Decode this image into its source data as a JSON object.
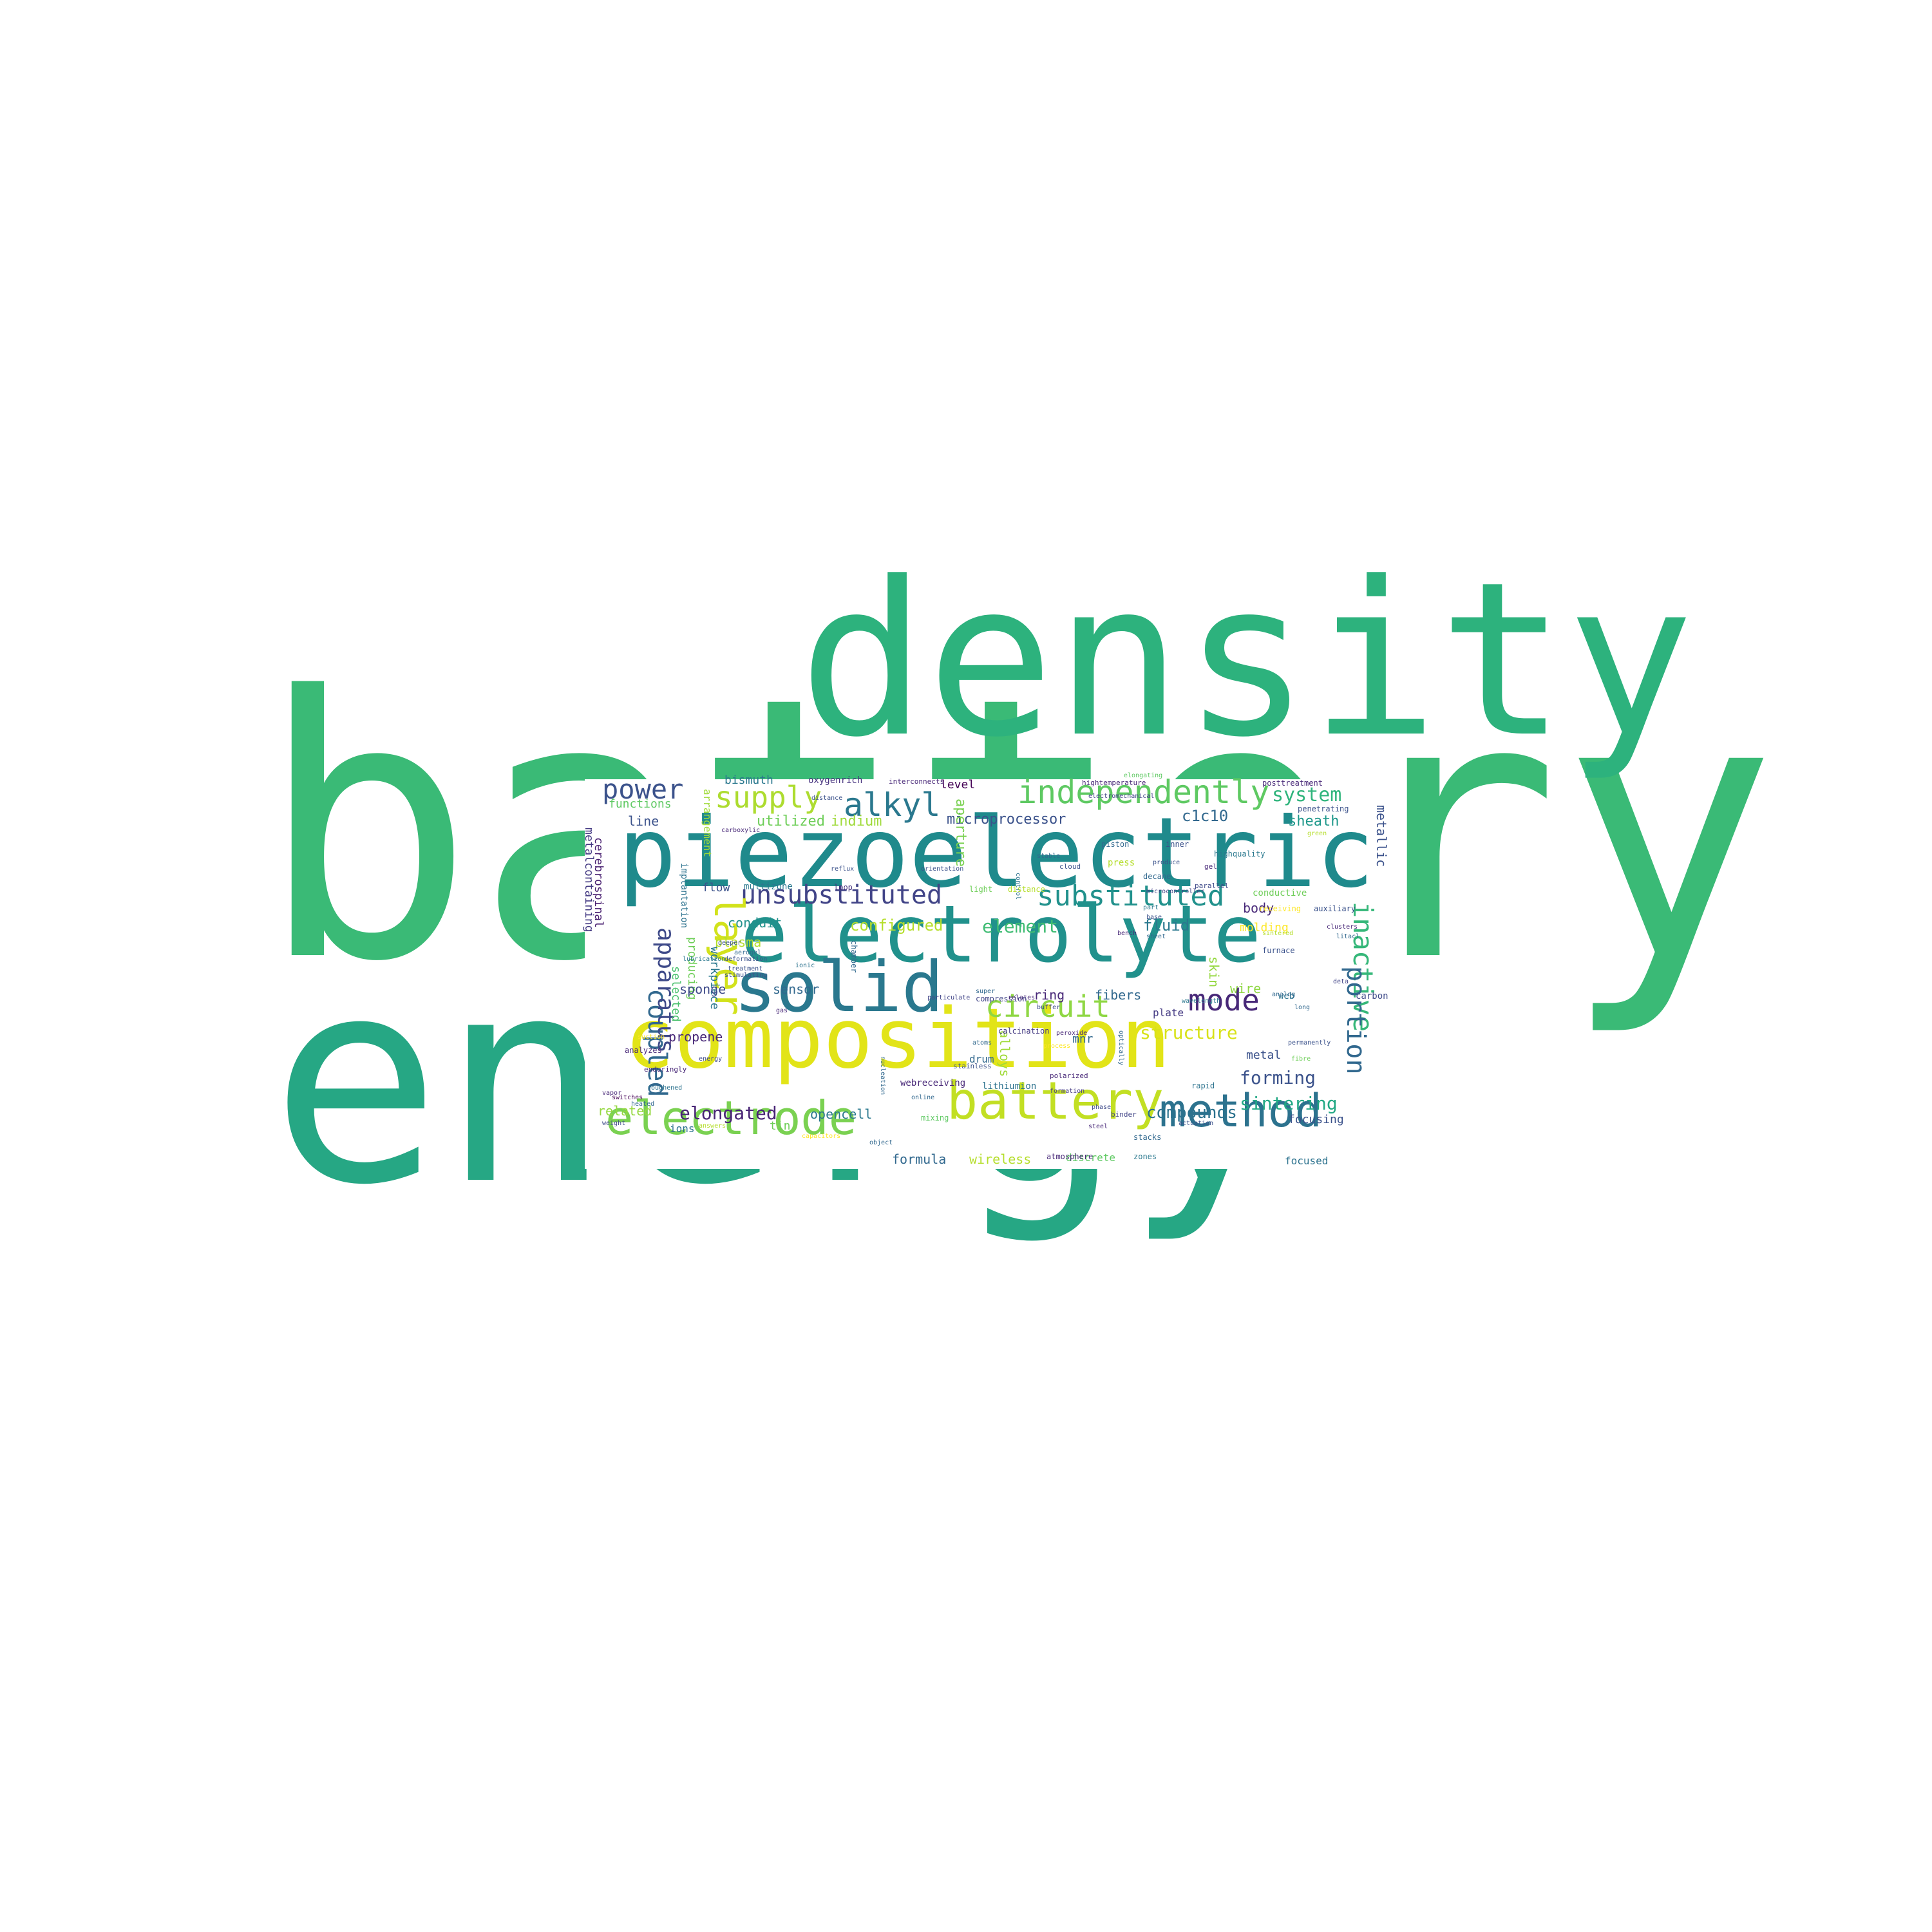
{
  "background_color": "#ffffff",
  "words": [
    {
      "text": "battery",
      "color": "#3aba76"
    },
    {
      "text": "energy",
      "color": "#26a784"
    },
    {
      "text": "density",
      "color": "#2db27d"
    },
    {
      "text": "piezoelectric",
      "color": "#1f8a8c"
    },
    {
      "text": "electrolyte",
      "color": "#21918c"
    },
    {
      "text": "composition",
      "color": "#e2e418"
    },
    {
      "text": "solid",
      "color": "#2a788e"
    },
    {
      "text": "battery",
      "color": "#c2df23"
    },
    {
      "text": "electrode",
      "color": "#7ad151"
    },
    {
      "text": "method",
      "color": "#2c728e"
    },
    {
      "text": "independently",
      "color": "#5ec962"
    },
    {
      "text": "alkyl",
      "color": "#2a788e"
    },
    {
      "text": "supply",
      "color": "#addc30"
    },
    {
      "text": "power",
      "color": "#3b528b"
    },
    {
      "text": "unsubstituted",
      "color": "#414487"
    },
    {
      "text": "substituted",
      "color": "#21918c"
    },
    {
      "text": "layer",
      "color": "#d2e21b"
    },
    {
      "text": "circuit",
      "color": "#8fd744"
    },
    {
      "text": "mode",
      "color": "#482878"
    },
    {
      "text": "coupled",
      "color": "#31688e"
    },
    {
      "text": "inactive",
      "color": "#35b779"
    },
    {
      "text": "portion",
      "color": "#31688e"
    },
    {
      "text": "apparatus",
      "color": "#3e4a89"
    },
    {
      "text": "system",
      "color": "#2fb47c"
    },
    {
      "text": "elongated",
      "color": "#482475"
    },
    {
      "text": "forming",
      "color": "#3b528b"
    },
    {
      "text": "sintering",
      "color": "#22a884"
    },
    {
      "text": "compounds",
      "color": "#2c728e"
    },
    {
      "text": "structure",
      "color": "#d8e219"
    },
    {
      "text": "element",
      "color": "#3fbc73"
    },
    {
      "text": "configured",
      "color": "#b5de2b"
    },
    {
      "text": "fluid",
      "color": "#2a788e"
    },
    {
      "text": "sheath",
      "color": "#1f988b"
    },
    {
      "text": "c1c10",
      "color": "#31688e"
    },
    {
      "text": "microprocessor",
      "color": "#3b528b"
    },
    {
      "text": "utilized",
      "color": "#6ece58"
    },
    {
      "text": "indium",
      "color": "#9fda3a"
    },
    {
      "text": "bismuth",
      "color": "#2a788e"
    },
    {
      "text": "oxygenrich",
      "color": "#46327e"
    },
    {
      "text": "level",
      "color": "#440154"
    },
    {
      "text": "line",
      "color": "#3b528b"
    },
    {
      "text": "functions",
      "color": "#5ec962"
    },
    {
      "text": "metalcontaining",
      "color": "#443a83"
    },
    {
      "text": "cerebrospinal",
      "color": "#481f70"
    },
    {
      "text": "arrangement",
      "color": "#a0da39"
    },
    {
      "text": "implantation",
      "color": "#2c728e"
    },
    {
      "text": "aperture",
      "color": "#7ad151"
    },
    {
      "text": "metallic",
      "color": "#3b528b"
    },
    {
      "text": "flow",
      "color": "#3b528b"
    },
    {
      "text": "multizone",
      "color": "#2a788e"
    },
    {
      "text": "loop",
      "color": "#46327e"
    },
    {
      "text": "conduit",
      "color": "#21918c"
    },
    {
      "text": "plasma",
      "color": "#b5de2b"
    },
    {
      "text": "producing",
      "color": "#6ece58"
    },
    {
      "text": "selected",
      "color": "#4ac16d"
    },
    {
      "text": "workpiece",
      "color": "#2a788e"
    },
    {
      "text": "sponge",
      "color": "#3e4a89"
    },
    {
      "text": "sensor",
      "color": "#31688e"
    },
    {
      "text": "ring",
      "color": "#482878"
    },
    {
      "text": "fibers",
      "color": "#31688e"
    },
    {
      "text": "skin",
      "color": "#95d840"
    },
    {
      "text": "wire",
      "color": "#8fd744"
    },
    {
      "text": "body",
      "color": "#482878"
    },
    {
      "text": "molding",
      "color": "#fde725"
    },
    {
      "text": "plate",
      "color": "#443a83"
    },
    {
      "text": "mnr",
      "color": "#31688e"
    },
    {
      "text": "alloys",
      "color": "#a0da39"
    },
    {
      "text": "metal",
      "color": "#3b528b"
    },
    {
      "text": "propene",
      "color": "#482878"
    },
    {
      "text": "related",
      "color": "#95d840"
    },
    {
      "text": "ions",
      "color": "#2c728e"
    },
    {
      "text": "tin",
      "color": "#6ece58"
    },
    {
      "text": "opencell",
      "color": "#2a788e"
    },
    {
      "text": "formula",
      "color": "#31688e"
    },
    {
      "text": "wireless",
      "color": "#b5de2b"
    },
    {
      "text": "focusing",
      "color": "#3b528b"
    },
    {
      "text": "focused",
      "color": "#2c728e"
    },
    {
      "text": "drum",
      "color": "#31688e"
    },
    {
      "text": "chamber",
      "color": "#31688e"
    },
    {
      "text": "webreceiving",
      "color": "#482878"
    },
    {
      "text": "lithiumion",
      "color": "#2c728e"
    },
    {
      "text": "discrete",
      "color": "#5ec962"
    },
    {
      "text": "carbon",
      "color": "#3e4a89"
    },
    {
      "text": "conductive",
      "color": "#6ece58"
    },
    {
      "text": "web",
      "color": "#2c728e"
    },
    {
      "text": "highquality",
      "color": "#2a788e"
    },
    {
      "text": "press",
      "color": "#b5de2b"
    },
    {
      "text": "piston",
      "color": "#31688e"
    },
    {
      "text": "inner",
      "color": "#3b528b"
    },
    {
      "text": "calcination",
      "color": "#443a83"
    },
    {
      "text": "compression",
      "color": "#414487"
    },
    {
      "text": "atmosphere",
      "color": "#482878"
    },
    {
      "text": "zones",
      "color": "#2a788e"
    },
    {
      "text": "stacks",
      "color": "#31688e"
    },
    {
      "text": "posttreatment",
      "color": "#482878"
    },
    {
      "text": "penetrating",
      "color": "#3b528b"
    },
    {
      "text": "hightemperature",
      "color": "#482878"
    },
    {
      "text": "interconnects",
      "color": "#482878"
    },
    {
      "text": "elongating",
      "color": "#5ec962"
    },
    {
      "text": "control",
      "color": "#2c728e"
    },
    {
      "text": "stable",
      "color": "#31688e"
    },
    {
      "text": "electromechanical",
      "color": "#414487"
    },
    {
      "text": "produce",
      "color": "#3b528b"
    },
    {
      "text": "enduringly",
      "color": "#482878"
    },
    {
      "text": "roughened",
      "color": "#2c728e"
    },
    {
      "text": "stainless",
      "color": "#3b528b"
    },
    {
      "text": "online",
      "color": "#31688e"
    },
    {
      "text": "steel",
      "color": "#482878"
    },
    {
      "text": "binder",
      "color": "#414487"
    },
    {
      "text": "rapid",
      "color": "#2c728e"
    },
    {
      "text": "mixing",
      "color": "#5ec962"
    },
    {
      "text": "phase",
      "color": "#3e4a89"
    },
    {
      "text": "formation",
      "color": "#443a83"
    },
    {
      "text": "polarized",
      "color": "#482878"
    },
    {
      "text": "distance",
      "color": "#b5de2b"
    },
    {
      "text": "receiving",
      "color": "#fde725"
    },
    {
      "text": "auxiliary",
      "color": "#3b528b"
    },
    {
      "text": "furnace",
      "color": "#3b528b"
    },
    {
      "text": "clusters",
      "color": "#482878"
    },
    {
      "text": "particulate",
      "color": "#414487"
    },
    {
      "text": "wavelength",
      "color": "#2a788e"
    },
    {
      "text": "peroxide",
      "color": "#482878"
    },
    {
      "text": "optically",
      "color": "#31688e"
    },
    {
      "text": "buffer",
      "color": "#3e4a89"
    },
    {
      "text": "atoms",
      "color": "#31688e"
    },
    {
      "text": "analyzes",
      "color": "#482878"
    },
    {
      "text": "heated",
      "color": "#31688e"
    },
    {
      "text": "switches",
      "color": "#440154"
    },
    {
      "text": "vapor",
      "color": "#482878"
    },
    {
      "text": "weight",
      "color": "#3e4a89"
    },
    {
      "text": "answers",
      "color": "#b5de2b"
    },
    {
      "text": "treatment",
      "color": "#3b528b"
    },
    {
      "text": "stimulating",
      "color": "#3b528b"
    },
    {
      "text": "deformation",
      "color": "#3b528b"
    },
    {
      "text": "aerogel",
      "color": "#31688e"
    },
    {
      "text": "light",
      "color": "#6ece58"
    },
    {
      "text": "super",
      "color": "#31688e"
    },
    {
      "text": "relates",
      "color": "#482878"
    },
    {
      "text": "process",
      "color": "#fde725"
    },
    {
      "text": "cloud",
      "color": "#3b528b"
    },
    {
      "text": "decane",
      "color": "#31688e"
    },
    {
      "text": "parallel",
      "color": "#3e4a89"
    },
    {
      "text": "gel",
      "color": "#482878"
    },
    {
      "text": "sheet",
      "color": "#31688e"
    },
    {
      "text": "base",
      "color": "#3b528b"
    },
    {
      "text": "bench",
      "color": "#482878"
    },
    {
      "text": "part",
      "color": "#2a788e"
    },
    {
      "text": "microcontroller",
      "color": "#414487"
    },
    {
      "text": "sintered",
      "color": "#b5de2b"
    },
    {
      "text": "analog",
      "color": "#31688e"
    },
    {
      "text": "deta",
      "color": "#414487"
    },
    {
      "text": "litacl",
      "color": "#31688e"
    },
    {
      "text": "fibre",
      "color": "#6ece58"
    },
    {
      "text": "permanently",
      "color": "#3b528b"
    },
    {
      "text": "gas",
      "color": "#482878"
    },
    {
      "text": "suction",
      "color": "#fde725"
    },
    {
      "text": "energy",
      "color": "#3e4a89"
    },
    {
      "text": "lubrication",
      "color": "#2a788e"
    },
    {
      "text": "deeper",
      "color": "#3b528b"
    },
    {
      "text": "carboxylic",
      "color": "#482878"
    },
    {
      "text": "object",
      "color": "#31688e"
    },
    {
      "text": "ionic",
      "color": "#2c728e"
    },
    {
      "text": "capacitors",
      "color": "#fde725"
    },
    {
      "text": "actuation",
      "color": "#3b528b"
    },
    {
      "text": "reflux",
      "color": "#3b528b"
    },
    {
      "text": "orientation",
      "color": "#3b528b"
    },
    {
      "text": "green",
      "color": "#b5de2b"
    },
    {
      "text": "long",
      "color": "#31688e"
    },
    {
      "text": "nucleation",
      "color": "#31688e"
    },
    {
      "text": "distance",
      "color": "#3b528b"
    }
  ]
}
